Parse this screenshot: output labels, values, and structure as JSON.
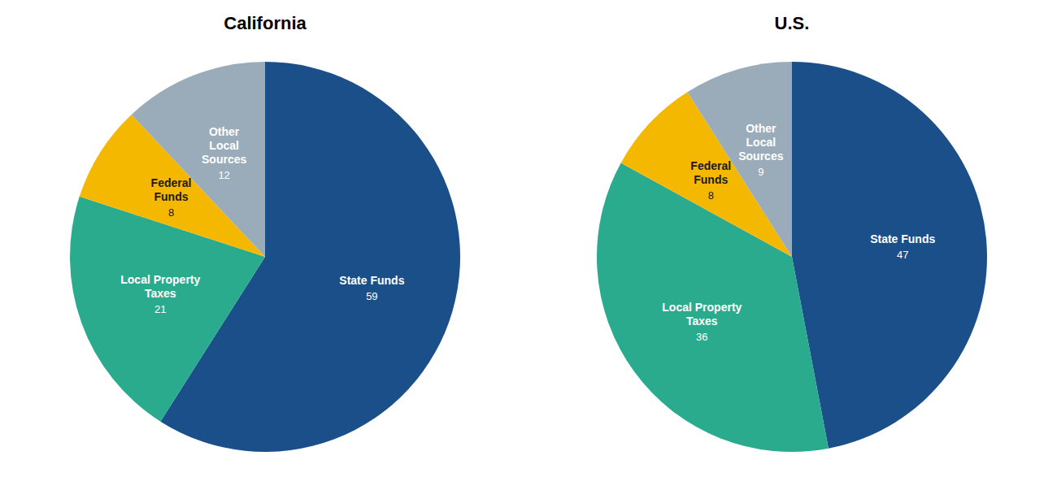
{
  "chart_data": [
    {
      "type": "pie",
      "title": "California",
      "categories": [
        "State Funds",
        "Local Property\nTaxes",
        "Federal\nFunds",
        "Other\nLocal\nSources"
      ],
      "values": [
        59,
        21,
        8,
        12
      ],
      "colors": [
        "#1a4f8a",
        "#2aab8e",
        "#f5b800",
        "#9aacba"
      ],
      "data_labels": true
    },
    {
      "type": "pie",
      "title": "U.S.",
      "categories": [
        "State Funds",
        "Local Property\nTaxes",
        "Federal\nFunds",
        "Other\nLocal\nSources"
      ],
      "values": [
        47,
        36,
        8,
        9
      ],
      "colors": [
        "#1a4f8a",
        "#2aab8e",
        "#f5b800",
        "#9aacba"
      ],
      "data_labels": true
    }
  ]
}
